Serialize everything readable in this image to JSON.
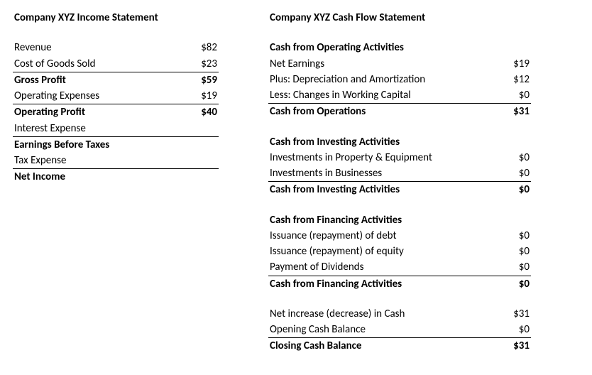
{
  "income": {
    "title": "Company XYZ Income Statement",
    "rows": [
      {
        "label": "Revenue",
        "value": "$82"
      },
      {
        "label": "Cost of Goods Sold",
        "value": "$23"
      },
      {
        "label": "Gross Profit",
        "value": "$59"
      },
      {
        "label": "Operating Expenses",
        "value": "$19"
      },
      {
        "label": "Operating Profit",
        "value": "$40"
      },
      {
        "label": "Interest Expense",
        "value": ""
      },
      {
        "label": "Earnings Before Taxes",
        "value": ""
      },
      {
        "label": "Tax Expense",
        "value": ""
      },
      {
        "label": "Net Income",
        "value": ""
      }
    ]
  },
  "cashflow": {
    "title": "Company XYZ Cash Flow Statement",
    "op": {
      "heading": "Cash from Operating Activities",
      "rows": [
        {
          "label": "Net Earnings",
          "value": "$19"
        },
        {
          "label": "Plus: Depreciation and Amortization",
          "value": "$12"
        },
        {
          "label": "Less: Changes in Working Capital",
          "value": "$0"
        }
      ],
      "total": {
        "label": "Cash from Operations",
        "value": "$31"
      }
    },
    "inv": {
      "heading": "Cash from Investing Activities",
      "rows": [
        {
          "label": "Investments in Property & Equipment",
          "value": "$0"
        },
        {
          "label": "Investments in Businesses",
          "value": "$0"
        }
      ],
      "total": {
        "label": "Cash from Investing Activities",
        "value": "$0"
      }
    },
    "fin": {
      "heading": "Cash from Financing Activities",
      "rows": [
        {
          "label": "Issuance (repayment) of debt",
          "value": "$0"
        },
        {
          "label": "Issuance (repayment) of equity",
          "value": "$0"
        },
        {
          "label": "Payment of Dividends",
          "value": "$0"
        }
      ],
      "total": {
        "label": "Cash from Financing Activities",
        "value": "$0"
      }
    },
    "summary": {
      "netchange": {
        "label": "Net increase (decrease) in Cash",
        "value": "$31"
      },
      "opening": {
        "label": "Opening Cash Balance",
        "value": "$0"
      },
      "closing": {
        "label": "Closing Cash Balance",
        "value": "$31"
      }
    }
  }
}
